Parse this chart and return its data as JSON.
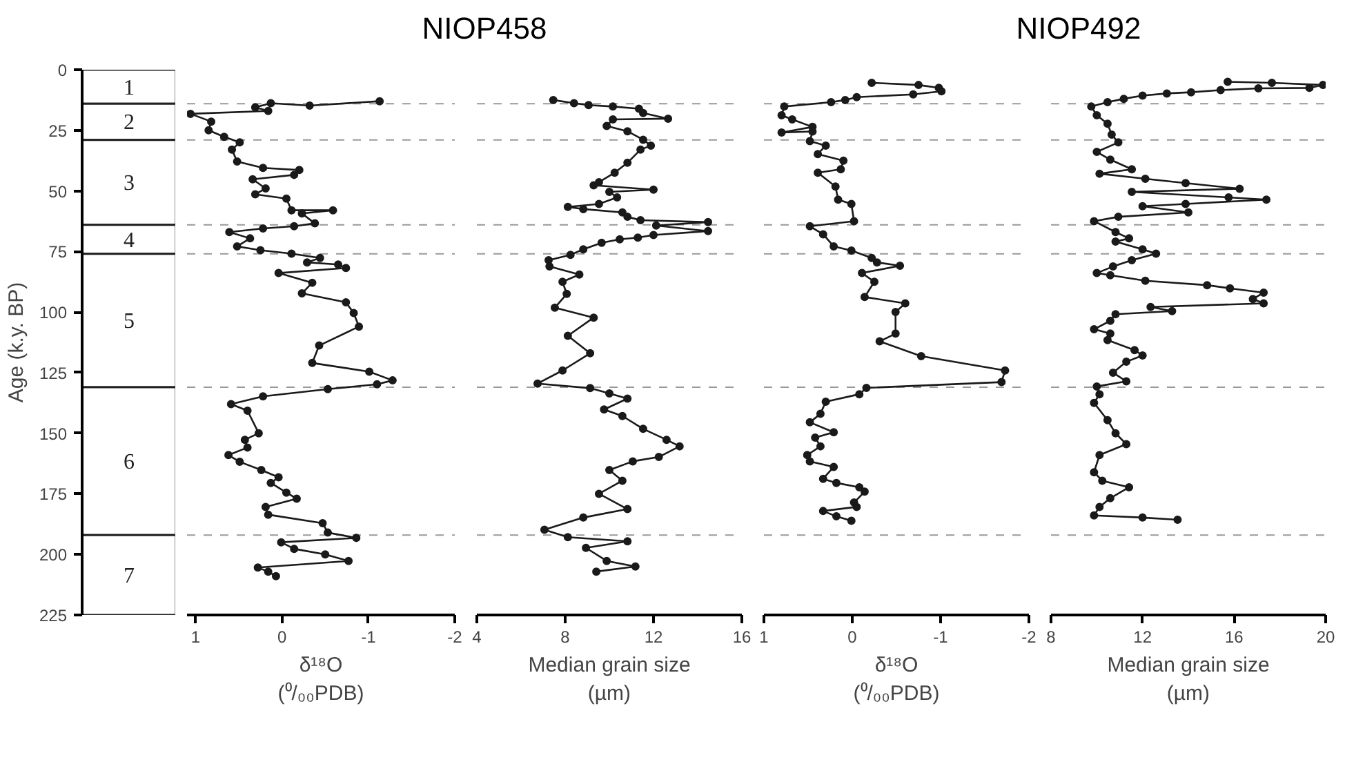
{
  "chart_data": [
    {
      "type": "bar",
      "stacked": true,
      "categories": [
        null
      ],
      "ylabel": "Age (k.y. BP)",
      "ylim": [
        225,
        0
      ],
      "yticks": [
        0,
        25,
        50,
        75,
        100,
        125,
        150,
        175,
        200,
        225
      ],
      "tick_labels": "y",
      "series": [
        {
          "name": "1",
          "color": "#ffffff",
          "values": [
            14
          ]
        },
        {
          "name": "2",
          "color": "#ffffff",
          "values": [
            15
          ]
        },
        {
          "name": "3",
          "color": "#ffffff",
          "values": [
            35
          ]
        },
        {
          "name": "4",
          "color": "#ffffff",
          "values": [
            12
          ]
        },
        {
          "name": "5",
          "color": "#ffffff",
          "values": [
            55
          ]
        },
        {
          "name": "6",
          "color": "#ffffff",
          "values": [
            61
          ]
        },
        {
          "name": "7",
          "color": "#ffffff",
          "values": [
            33
          ]
        }
      ]
    },
    {
      "type": "line",
      "title": "NIOP458",
      "xlabel": "δ¹⁸O\n(⁰/₀₀PDB)",
      "xlim": [
        1.1,
        -2
      ],
      "xticks": [
        1,
        0,
        -1,
        -2
      ],
      "ylim": [
        225,
        0
      ],
      "tick_labels": "x",
      "marker": "circle",
      "line_style": "solid",
      "ref_lines": [
        {
          "axis": "y",
          "value": 14,
          "line_style": "dashed"
        },
        {
          "axis": "y",
          "value": 29,
          "line_style": "dashed"
        },
        {
          "axis": "y",
          "value": 64,
          "line_style": "dashed"
        },
        {
          "axis": "y",
          "value": 76,
          "line_style": "dashed"
        },
        {
          "axis": "y",
          "value": 131,
          "line_style": "dashed"
        },
        {
          "axis": "y",
          "value": 192,
          "line_style": "dashed"
        }
      ],
      "series": [
        {
          "color": "#1a1a1a",
          "x": [
            -1.13,
            -0.32,
            0.13,
            0.31,
            0.16,
            1.06,
            0.82,
            0.85,
            0.67,
            0.49,
            0.58,
            0.52,
            0.22,
            -0.2,
            -0.14,
            0.34,
            0.19,
            0.31,
            -0.05,
            -0.11,
            -0.59,
            -0.23,
            -0.38,
            -0.14,
            0.22,
            0.61,
            0.37,
            0.52,
            0.25,
            -0.11,
            -0.44,
            -0.29,
            -0.65,
            -0.74,
            0.04,
            -0.35,
            -0.23,
            -0.74,
            -0.83,
            -0.89,
            -0.43,
            -0.35,
            -1.01,
            -1.28,
            -1.1,
            -0.53,
            0.22,
            0.59,
            0.4,
            0.27,
            0.43,
            0.4,
            0.62,
            0.49,
            0.24,
            0.04,
            0.13,
            -0.05,
            -0.17,
            0.19,
            0.16,
            -0.47,
            -0.53,
            -0.86,
            0.01,
            -0.14,
            -0.5,
            -0.77,
            0.28,
            0.16,
            0.07
          ],
          "values": [
            13,
            14.8,
            13.8,
            15.5,
            17,
            18.2,
            21.4,
            25,
            27.7,
            30,
            33,
            37.9,
            40.5,
            41.4,
            43.4,
            45.2,
            49,
            51.4,
            53.2,
            58,
            58,
            59.3,
            63.4,
            64.6,
            65.5,
            67,
            69.6,
            72.9,
            74.5,
            75.9,
            77.7,
            79.5,
            80.4,
            81.8,
            83.9,
            87.9,
            92.3,
            96,
            100.4,
            106,
            113.8,
            121,
            124.6,
            128.2,
            129.8,
            131.8,
            134.8,
            138,
            140.7,
            150,
            152.7,
            155.9,
            159,
            161.8,
            165.2,
            168.2,
            170.5,
            174.5,
            177,
            180.4,
            183.6,
            187.1,
            191,
            193.2,
            195,
            197.7,
            200,
            202.7,
            205.4,
            207.1,
            209
          ]
        }
      ]
    },
    {
      "type": "line",
      "xlabel": "Median grain size\n(µm)",
      "xlim": [
        4,
        16
      ],
      "xticks": [
        4,
        8,
        12,
        16
      ],
      "ylim": [
        225,
        0
      ],
      "tick_labels": "x",
      "marker": "circle",
      "line_style": "solid",
      "ref_lines": [
        {
          "axis": "y",
          "value": 14,
          "line_style": "dashed"
        },
        {
          "axis": "y",
          "value": 29,
          "line_style": "dashed"
        },
        {
          "axis": "y",
          "value": 64,
          "line_style": "dashed"
        },
        {
          "axis": "y",
          "value": 76,
          "line_style": "dashed"
        },
        {
          "axis": "y",
          "value": 131,
          "line_style": "dashed"
        },
        {
          "axis": "y",
          "value": 192,
          "line_style": "dashed"
        }
      ],
      "series": [
        {
          "color": "#1a1a1a",
          "x": [
            7.46,
            8.4,
            9.06,
            10.16,
            11.34,
            11.53,
            12.66,
            10.16,
            9.88,
            10.82,
            11.53,
            11.88,
            11.41,
            10.82,
            10.24,
            9.53,
            9.29,
            12.0,
            10.0,
            10.35,
            9.53,
            8.12,
            8.82,
            10.59,
            10.82,
            11.41,
            14.47,
            12.12,
            14.47,
            12.0,
            11.29,
            10.47,
            9.65,
            8.82,
            8.24,
            7.25,
            7.29,
            8.64,
            7.88,
            8.07,
            7.53,
            9.29,
            8.12,
            9.13,
            7.88,
            6.75,
            9.13,
            10.0,
            10.82,
            9.76,
            10.59,
            11.53,
            12.59,
            13.18,
            12.24,
            11.06,
            10.0,
            10.59,
            9.53,
            10.82,
            8.82,
            7.06,
            8.12,
            10.82,
            8.94,
            9.88,
            11.18,
            9.41
          ],
          "values": [
            12.5,
            13.8,
            14.6,
            15.2,
            16.1,
            17.9,
            20.2,
            20.5,
            23.2,
            25.4,
            28.9,
            31.3,
            33,
            38.4,
            42.5,
            46.4,
            47.7,
            49.5,
            50.4,
            52.7,
            55.4,
            56.6,
            57.5,
            58.9,
            60.7,
            62.1,
            62.9,
            64.3,
            66.6,
            68.2,
            69.3,
            70,
            71.4,
            74.1,
            76.4,
            78.6,
            81.2,
            84.5,
            87.5,
            92.5,
            98.2,
            102.3,
            109.8,
            117,
            124.1,
            129.5,
            131.4,
            133.6,
            135.7,
            140.2,
            142.9,
            148.2,
            152.7,
            155.4,
            159.8,
            161.6,
            165.2,
            169.6,
            175,
            181.3,
            184.8,
            189.8,
            192.9,
            194.6,
            197.3,
            202.7,
            205,
            207.1
          ]
        }
      ]
    },
    {
      "type": "line",
      "xlabel": "δ¹⁸O\n(⁰/₀₀PDB)",
      "xlim": [
        1,
        -2
      ],
      "xticks": [
        1,
        0,
        -1,
        -2
      ],
      "ylim": [
        225,
        0
      ],
      "tick_labels": "x",
      "marker": "circle",
      "line_style": "solid",
      "ref_lines": [
        {
          "axis": "y",
          "value": 14,
          "line_style": "dashed"
        },
        {
          "axis": "y",
          "value": 29,
          "line_style": "dashed"
        },
        {
          "axis": "y",
          "value": 64,
          "line_style": "dashed"
        },
        {
          "axis": "y",
          "value": 76,
          "line_style": "dashed"
        },
        {
          "axis": "y",
          "value": 131,
          "line_style": "dashed"
        },
        {
          "axis": "y",
          "value": 192,
          "line_style": "dashed"
        }
      ],
      "series": [
        {
          "color": "#1a1a1a",
          "x": [
            -0.22,
            -0.75,
            -0.98,
            -1.01,
            -0.69,
            -0.05,
            0.08,
            0.24,
            0.77,
            0.8,
            0.68,
            0.45,
            0.8,
            0.45,
            0.48,
            0.3,
            0.39,
            0.1,
            0.13,
            0.39,
            0.19,
            0.16,
            0.01,
            -0.02,
            0.48,
            0.33,
            0.21,
            0.01,
            -0.22,
            -0.28,
            -0.54,
            -0.11,
            -0.25,
            -0.14,
            -0.6,
            -0.49,
            -0.49,
            -0.31,
            -0.78,
            -1.73,
            -1.69,
            -0.16,
            -0.08,
            0.3,
            0.36,
            0.48,
            0.21,
            0.42,
            0.36,
            0.51,
            0.48,
            0.21,
            0.33,
            0.18,
            -0.08,
            -0.14,
            -0.02,
            -0.05,
            0.33,
            0.18,
            0.01
          ],
          "values": [
            5.4,
            6.3,
            7.5,
            8.9,
            10.2,
            11.3,
            12.5,
            13.4,
            15.2,
            18.8,
            20.5,
            23.6,
            25.9,
            25.5,
            29.5,
            31.3,
            34.8,
            37.5,
            41.1,
            42.5,
            48.2,
            53.6,
            55.4,
            62.5,
            64.6,
            67.9,
            72.9,
            74.6,
            77.7,
            79.5,
            80.9,
            83.9,
            87.5,
            93.8,
            96.4,
            100,
            108.9,
            112.1,
            118.2,
            124.1,
            128.9,
            131.3,
            133.9,
            137,
            142,
            145.5,
            149.6,
            151.8,
            155.4,
            159,
            161.6,
            163.9,
            168.8,
            170.5,
            172.3,
            174.1,
            178.6,
            180.4,
            182.1,
            184.3,
            186.1
          ]
        }
      ]
    },
    {
      "type": "line",
      "title": "NIOP492",
      "xlabel": "Median grain size\n(µm)",
      "xlim": [
        8,
        20
      ],
      "xticks": [
        8,
        12,
        16,
        20
      ],
      "ylim": [
        225,
        0
      ],
      "tick_labels": "x",
      "marker": "circle",
      "line_style": "solid",
      "ref_lines": [
        {
          "axis": "y",
          "value": 14,
          "line_style": "dashed"
        },
        {
          "axis": "y",
          "value": 29,
          "line_style": "dashed"
        },
        {
          "axis": "y",
          "value": 64,
          "line_style": "dashed"
        },
        {
          "axis": "y",
          "value": 76,
          "line_style": "dashed"
        },
        {
          "axis": "y",
          "value": 131,
          "line_style": "dashed"
        },
        {
          "axis": "y",
          "value": 192,
          "line_style": "dashed"
        }
      ],
      "series": [
        {
          "color": "#1a1a1a",
          "x": [
            15.72,
            17.65,
            19.88,
            19.29,
            17.06,
            15.41,
            14.12,
            13.06,
            12.0,
            11.18,
            10.47,
            9.76,
            10.0,
            10.47,
            10.65,
            10.94,
            10.0,
            10.59,
            11.53,
            10.12,
            12.12,
            13.88,
            16.24,
            11.53,
            15.76,
            17.41,
            13.88,
            12.0,
            14.0,
            10.94,
            9.88,
            10.82,
            11.41,
            10.82,
            12.0,
            12.59,
            11.53,
            10.71,
            10.0,
            10.59,
            12.12,
            14.82,
            15.82,
            17.29,
            16.82,
            17.29,
            12.35,
            13.29,
            10.82,
            10.59,
            9.88,
            10.59,
            10.47,
            11.65,
            12.0,
            11.29,
            10.71,
            11.29,
            10.0,
            10.12,
            9.88,
            10.47,
            10.82,
            11.29,
            10.12,
            9.88,
            10.24,
            11.41,
            10.59,
            10.12,
            9.88,
            12.0,
            13.53
          ],
          "values": [
            5,
            5.4,
            6.3,
            7.5,
            7.7,
            8.4,
            9.3,
            9.8,
            10.7,
            12,
            13.4,
            15.2,
            18.8,
            22.3,
            26.8,
            30,
            33.9,
            37.1,
            41.1,
            42.9,
            45,
            46.8,
            49.1,
            50.4,
            52.7,
            53.6,
            55.4,
            56.3,
            58.9,
            60.7,
            62.5,
            67,
            69.6,
            70.9,
            74.1,
            75.9,
            78.6,
            81.2,
            83.9,
            84.8,
            87.1,
            88.9,
            90.2,
            92,
            94.6,
            96.4,
            97.9,
            99.6,
            100.9,
            103.6,
            107.1,
            108.9,
            111.6,
            115.7,
            117.9,
            120.5,
            125,
            128.6,
            130.7,
            133.9,
            137.5,
            144.6,
            150,
            154.5,
            159,
            166.1,
            169.6,
            172.3,
            176.8,
            180.4,
            183.9,
            184.8,
            185.7
          ]
        }
      ]
    }
  ]
}
